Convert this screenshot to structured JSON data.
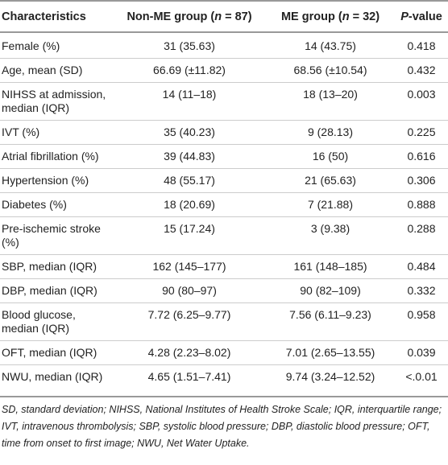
{
  "table": {
    "header": [
      [
        "Characteristics"
      ],
      [
        "Non-ME group (",
        "n",
        " = 87)"
      ],
      [
        "ME group (",
        "n",
        " = 32)"
      ],
      [
        "P",
        "-value"
      ]
    ],
    "rows": [
      [
        "Female (%)",
        "31 (35.63)",
        "14 (43.75)",
        "0.418"
      ],
      [
        "Age, mean (SD)",
        "66.69 (±11.82)",
        "68.56 (±10.54)",
        "0.432"
      ],
      [
        "NIHSS at admission, median (IQR)",
        "14 (11–18)",
        "18 (13–20)",
        "0.003"
      ],
      [
        "IVT (%)",
        "35 (40.23)",
        "9 (28.13)",
        "0.225"
      ],
      [
        "Atrial fibrillation (%)",
        "39 (44.83)",
        "16 (50)",
        "0.616"
      ],
      [
        "Hypertension (%)",
        "48 (55.17)",
        "21 (65.63)",
        "0.306"
      ],
      [
        "Diabetes (%)",
        "18 (20.69)",
        "7 (21.88)",
        "0.888"
      ],
      [
        "Pre-ischemic stroke (%)",
        "15 (17.24)",
        "3 (9.38)",
        "0.288"
      ],
      [
        "SBP, median (IQR)",
        "162 (145–177)",
        "161 (148–185)",
        "0.484"
      ],
      [
        "DBP, median (IQR)",
        "90 (80–97)",
        "90 (82–109)",
        "0.332"
      ],
      [
        "Blood glucose, median (IQR)",
        "7.72 (6.25–9.77)",
        "7.56 (6.11–9.23)",
        "0.958"
      ],
      [
        "OFT, median (IQR)",
        "4.28 (2.23–8.02)",
        "7.01 (2.65–13.55)",
        "0.039"
      ],
      [
        "NWU, median (IQR)",
        "4.65 (1.51–7.41)",
        "9.74 (3.24–12.52)",
        "<.0.01"
      ]
    ],
    "footnote": "SD, standard deviation; NIHSS, National Institutes of Health Stroke Scale; IQR, interquartile range; IVT, intravenous thrombolysis; SBP, systolic blood pressure; DBP, diastolic blood pressure; OFT, time from onset to first image; NWU, Net Water Uptake."
  }
}
